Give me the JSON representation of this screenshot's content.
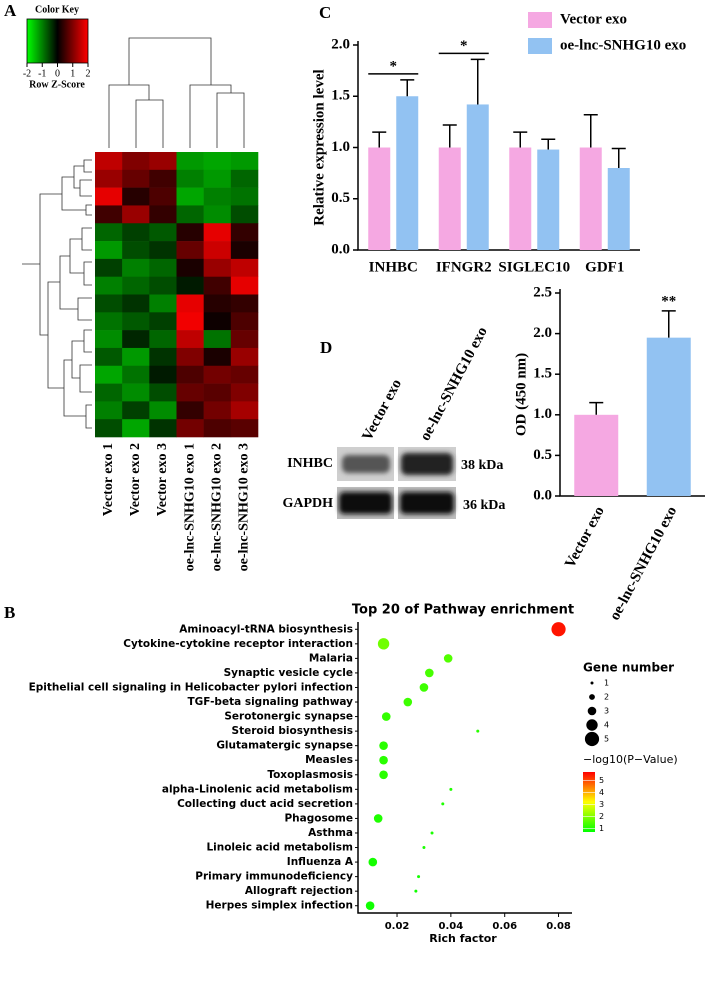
{
  "chart_data": [
    {
      "type": "heatmap",
      "panel": "A",
      "key_title": "Color Key",
      "key_label": "Row Z-Score",
      "zlim": [
        -2,
        2
      ],
      "zticks": [
        -2,
        -1,
        0,
        1,
        2
      ],
      "categories": [
        "Vector exo 1",
        "Vector exo 2",
        "Vector exo 3",
        "oe-lnc-SNHG10 exo 1",
        "oe-lnc-SNHG10 exo 2",
        "oe-lnc-SNHG10 exo 3"
      ],
      "values": [
        [
          1.5,
          1.0,
          1.2,
          -1.2,
          -1.3,
          -1.2
        ],
        [
          1.2,
          0.8,
          0.5,
          -1.0,
          -1.2,
          -0.8
        ],
        [
          1.8,
          0.3,
          0.6,
          -1.3,
          -1.0,
          -0.9
        ],
        [
          0.5,
          1.2,
          0.4,
          -0.8,
          -1.1,
          -0.6
        ],
        [
          -0.8,
          -0.5,
          -0.7,
          0.3,
          1.8,
          0.4
        ],
        [
          -1.2,
          -0.6,
          -0.4,
          0.8,
          1.6,
          0.2
        ],
        [
          -0.5,
          -1.0,
          -0.8,
          0.2,
          1.2,
          1.5
        ],
        [
          -1.0,
          -0.8,
          -0.6,
          -0.2,
          0.5,
          1.8
        ],
        [
          -0.6,
          -0.4,
          -1.0,
          1.8,
          0.3,
          0.4
        ],
        [
          -0.9,
          -0.7,
          -0.5,
          1.9,
          0.1,
          0.6
        ],
        [
          -1.1,
          -0.3,
          -0.8,
          1.5,
          -0.9,
          0.8
        ],
        [
          -0.7,
          -1.2,
          -0.4,
          1.0,
          0.2,
          1.2
        ],
        [
          -1.3,
          -0.9,
          -0.2,
          0.6,
          0.9,
          0.8
        ],
        [
          -0.8,
          -1.1,
          -0.6,
          0.8,
          0.7,
          1.0
        ],
        [
          -1.0,
          -0.5,
          -1.1,
          0.4,
          0.9,
          1.3
        ],
        [
          -0.6,
          -1.3,
          -0.4,
          0.9,
          0.6,
          0.7
        ]
      ]
    },
    {
      "type": "bar",
      "panel": "C",
      "y_label": "Relative expression level",
      "categories": [
        "INHBC",
        "IFNGR2",
        "SIGLEC10",
        "GDF1"
      ],
      "series": [
        {
          "name": "Vector exo",
          "color": "#f5a8e2",
          "values": [
            1.0,
            1.0,
            1.0,
            1.0
          ],
          "errors": [
            0.15,
            0.22,
            0.15,
            0.32
          ]
        },
        {
          "name": "oe-lnc-SNHG10 exo",
          "color": "#92c2f2",
          "values": [
            1.5,
            1.42,
            0.98,
            0.8
          ],
          "errors": [
            0.16,
            0.44,
            0.1,
            0.19
          ]
        }
      ],
      "annotations": [
        "*",
        "*",
        null,
        null
      ],
      "ylim": [
        0,
        2
      ],
      "yticks": [
        {
          "value": 0,
          "label": "0.0"
        },
        {
          "value": 0.5,
          "label": "0.5"
        },
        {
          "value": 1,
          "label": "1.0"
        },
        {
          "value": 1.5,
          "label": "1.5"
        },
        {
          "value": 2,
          "label": "2.0"
        }
      ]
    },
    {
      "type": "bar",
      "panel": "D",
      "y_label": "OD (450 nm)",
      "categories": [
        "Vector exo",
        "oe-lnc-SNHG10 exo"
      ],
      "values": [
        1.0,
        1.95
      ],
      "errors": [
        0.15,
        0.33
      ],
      "colors": [
        "#f5a8e2",
        "#92c2f2"
      ],
      "annotations": [
        null,
        "**"
      ],
      "ylim": [
        0,
        2.5
      ],
      "yticks": [
        {
          "value": 0,
          "label": "0.0"
        },
        {
          "value": 0.5,
          "label": "0.5"
        },
        {
          "value": 1,
          "label": "1.0"
        },
        {
          "value": 1.5,
          "label": "1.5"
        },
        {
          "value": 2,
          "label": "2.0"
        },
        {
          "value": 2.5,
          "label": "2.5"
        }
      ]
    },
    {
      "type": "bubble",
      "panel": "B",
      "title": "Top 20 of Pathway enrichment",
      "x_label": "Rich factor",
      "categories": [
        "Aminoacyl-tRNA biosynthesis",
        "Cytokine-cytokine receptor interaction",
        "Malaria",
        "Synaptic vesicle cycle",
        "Epithelial cell signaling in Helicobacter pylori infection",
        "TGF-beta signaling pathway",
        "Serotonergic synapse",
        "Steroid biosynthesis",
        "Glutamatergic synapse",
        "Measles",
        "Toxoplasmosis",
        "alpha-Linolenic acid metabolism",
        "Collecting duct acid secretion",
        "Phagosome",
        "Asthma",
        "Linoleic acid metabolism",
        "Influenza A",
        "Primary immunodeficiency",
        "Allograft rejection",
        "Herpes simplex infection"
      ],
      "values": [
        0.08,
        0.015,
        0.039,
        0.032,
        0.03,
        0.024,
        0.016,
        0.05,
        0.015,
        0.015,
        0.015,
        0.04,
        0.037,
        0.013,
        0.033,
        0.03,
        0.011,
        0.028,
        0.027,
        0.01
      ],
      "sizes": [
        5,
        4,
        3,
        3,
        3,
        3,
        3,
        1,
        3,
        3,
        3,
        1,
        1,
        3,
        1,
        1,
        3,
        1,
        1,
        3
      ],
      "color_values": [
        5.5,
        1.8,
        1.5,
        1.4,
        1.3,
        1.3,
        1.2,
        1.1,
        1.1,
        1.1,
        1.1,
        1.0,
        1.0,
        1.0,
        0.95,
        0.95,
        0.9,
        0.9,
        0.85,
        0.85
      ],
      "xlim": [
        0.0055,
        0.085
      ],
      "xticks": [
        0.02,
        0.04,
        0.06,
        0.08
      ],
      "size_legend": {
        "title": "Gene number",
        "values": [
          1,
          2,
          3,
          4,
          5
        ]
      },
      "color_legend": {
        "title": "−log10(P−Value)",
        "lim": [
          0.7,
          5.7
        ],
        "ticks": [
          1,
          2,
          3,
          4,
          5
        ]
      }
    }
  ],
  "blot": {
    "lanes": [
      "Vector exo",
      "oe-lnc-SNHG10 exo"
    ],
    "proteins": [
      {
        "name": "INHBC",
        "size": "38 kDa"
      },
      {
        "name": "GAPDH",
        "size": "36 kDa"
      }
    ]
  }
}
